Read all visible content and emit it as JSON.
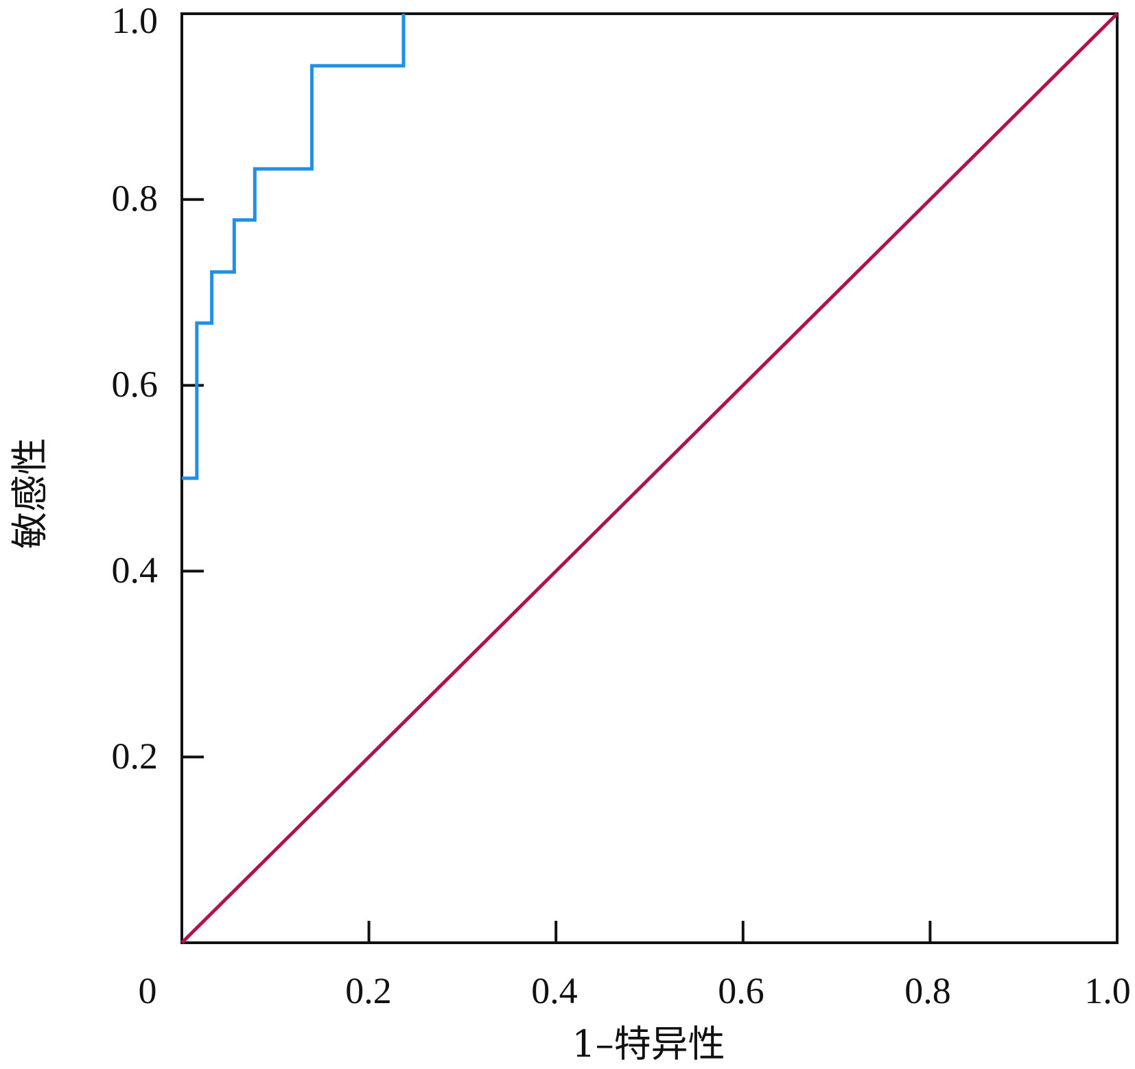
{
  "chart_data": {
    "type": "line",
    "title": "",
    "xlabel": "1–特异性",
    "ylabel": "敏感性",
    "xlim": [
      0,
      1
    ],
    "ylim": [
      0,
      1
    ],
    "x_ticks": [
      "0",
      "0.2",
      "0.4",
      "0.6",
      "0.8",
      "1.0"
    ],
    "y_ticks": [
      "0.2",
      "0.4",
      "0.6",
      "0.8",
      "1.0"
    ],
    "grid": false,
    "legend": "none",
    "series": [
      {
        "color": "#1e90e6",
        "style": "step",
        "points": [
          [
            0.0,
            0.5
          ],
          [
            0.016,
            0.5
          ],
          [
            0.016,
            0.667
          ],
          [
            0.032,
            0.667
          ],
          [
            0.032,
            0.722
          ],
          [
            0.056,
            0.722
          ],
          [
            0.056,
            0.778
          ],
          [
            0.078,
            0.778
          ],
          [
            0.078,
            0.833
          ],
          [
            0.139,
            0.833
          ],
          [
            0.139,
            0.944
          ],
          [
            0.237,
            0.944
          ],
          [
            0.237,
            1.0
          ]
        ]
      },
      {
        "color": "#b0124f",
        "style": "reference",
        "points": [
          [
            0.0,
            0.0
          ],
          [
            1.0,
            1.0
          ]
        ]
      }
    ]
  }
}
